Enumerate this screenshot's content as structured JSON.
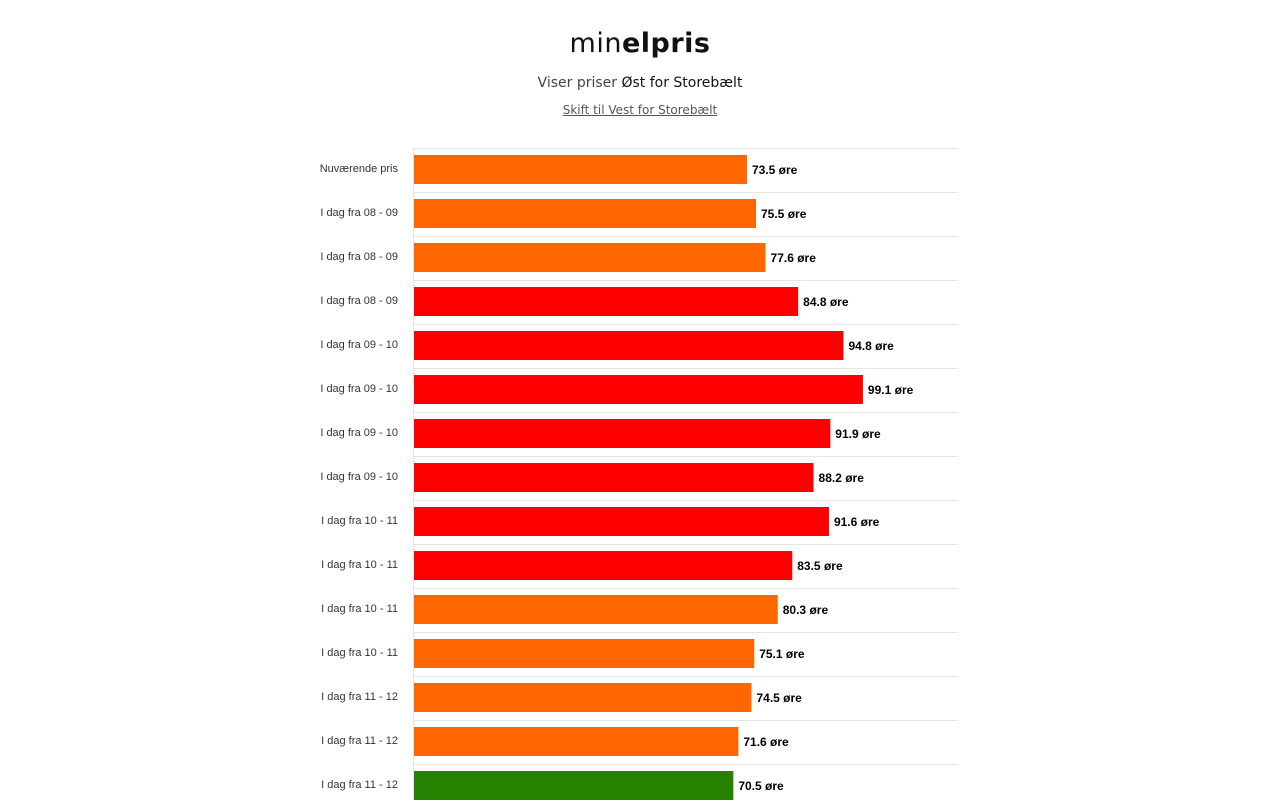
{
  "header": {
    "logo_light": "min",
    "logo_bold": "elpris",
    "subtitle_prefix": "Viser priser ",
    "subtitle_region": "Øst for Storebælt",
    "switch_link": "Skift til Vest for Storebælt"
  },
  "colors": {
    "green": "#258200",
    "orange": "#ff6600",
    "red": "#ff0000",
    "grid": "#e6e6e6"
  },
  "chart_data": {
    "type": "bar",
    "orientation": "horizontal",
    "unit": "øre",
    "xlim": [
      0,
      120
    ],
    "categories": [
      "Nuværende pris",
      "I dag fra 08 - 09",
      "I dag fra 08 - 09",
      "I dag fra 08 - 09",
      "I dag fra 09 - 10",
      "I dag fra 09 - 10",
      "I dag fra 09 - 10",
      "I dag fra 09 - 10",
      "I dag fra 10 - 11",
      "I dag fra 10 - 11",
      "I dag fra 10 - 11",
      "I dag fra 10 - 11",
      "I dag fra 11 - 12",
      "I dag fra 11 - 12",
      "I dag fra 11 - 12"
    ],
    "values": [
      73.5,
      75.5,
      77.6,
      84.8,
      94.8,
      99.1,
      91.9,
      88.2,
      91.6,
      83.5,
      80.3,
      75.1,
      74.5,
      71.6,
      70.5
    ],
    "value_labels": [
      "73.5 øre",
      "75.5 øre",
      "77.6 øre",
      "84.8 øre",
      "94.8 øre",
      "99.1 øre",
      "91.9 øre",
      "88.2 øre",
      "91.6 øre",
      "83.5 øre",
      "80.3 øre",
      "75.1 øre",
      "74.5 øre",
      "71.6 øre",
      "70.5 øre"
    ],
    "bar_colors": [
      "orange",
      "orange",
      "orange",
      "red",
      "red",
      "red",
      "red",
      "red",
      "red",
      "red",
      "orange",
      "orange",
      "orange",
      "orange",
      "green"
    ],
    "grid": true,
    "legend": "none"
  }
}
